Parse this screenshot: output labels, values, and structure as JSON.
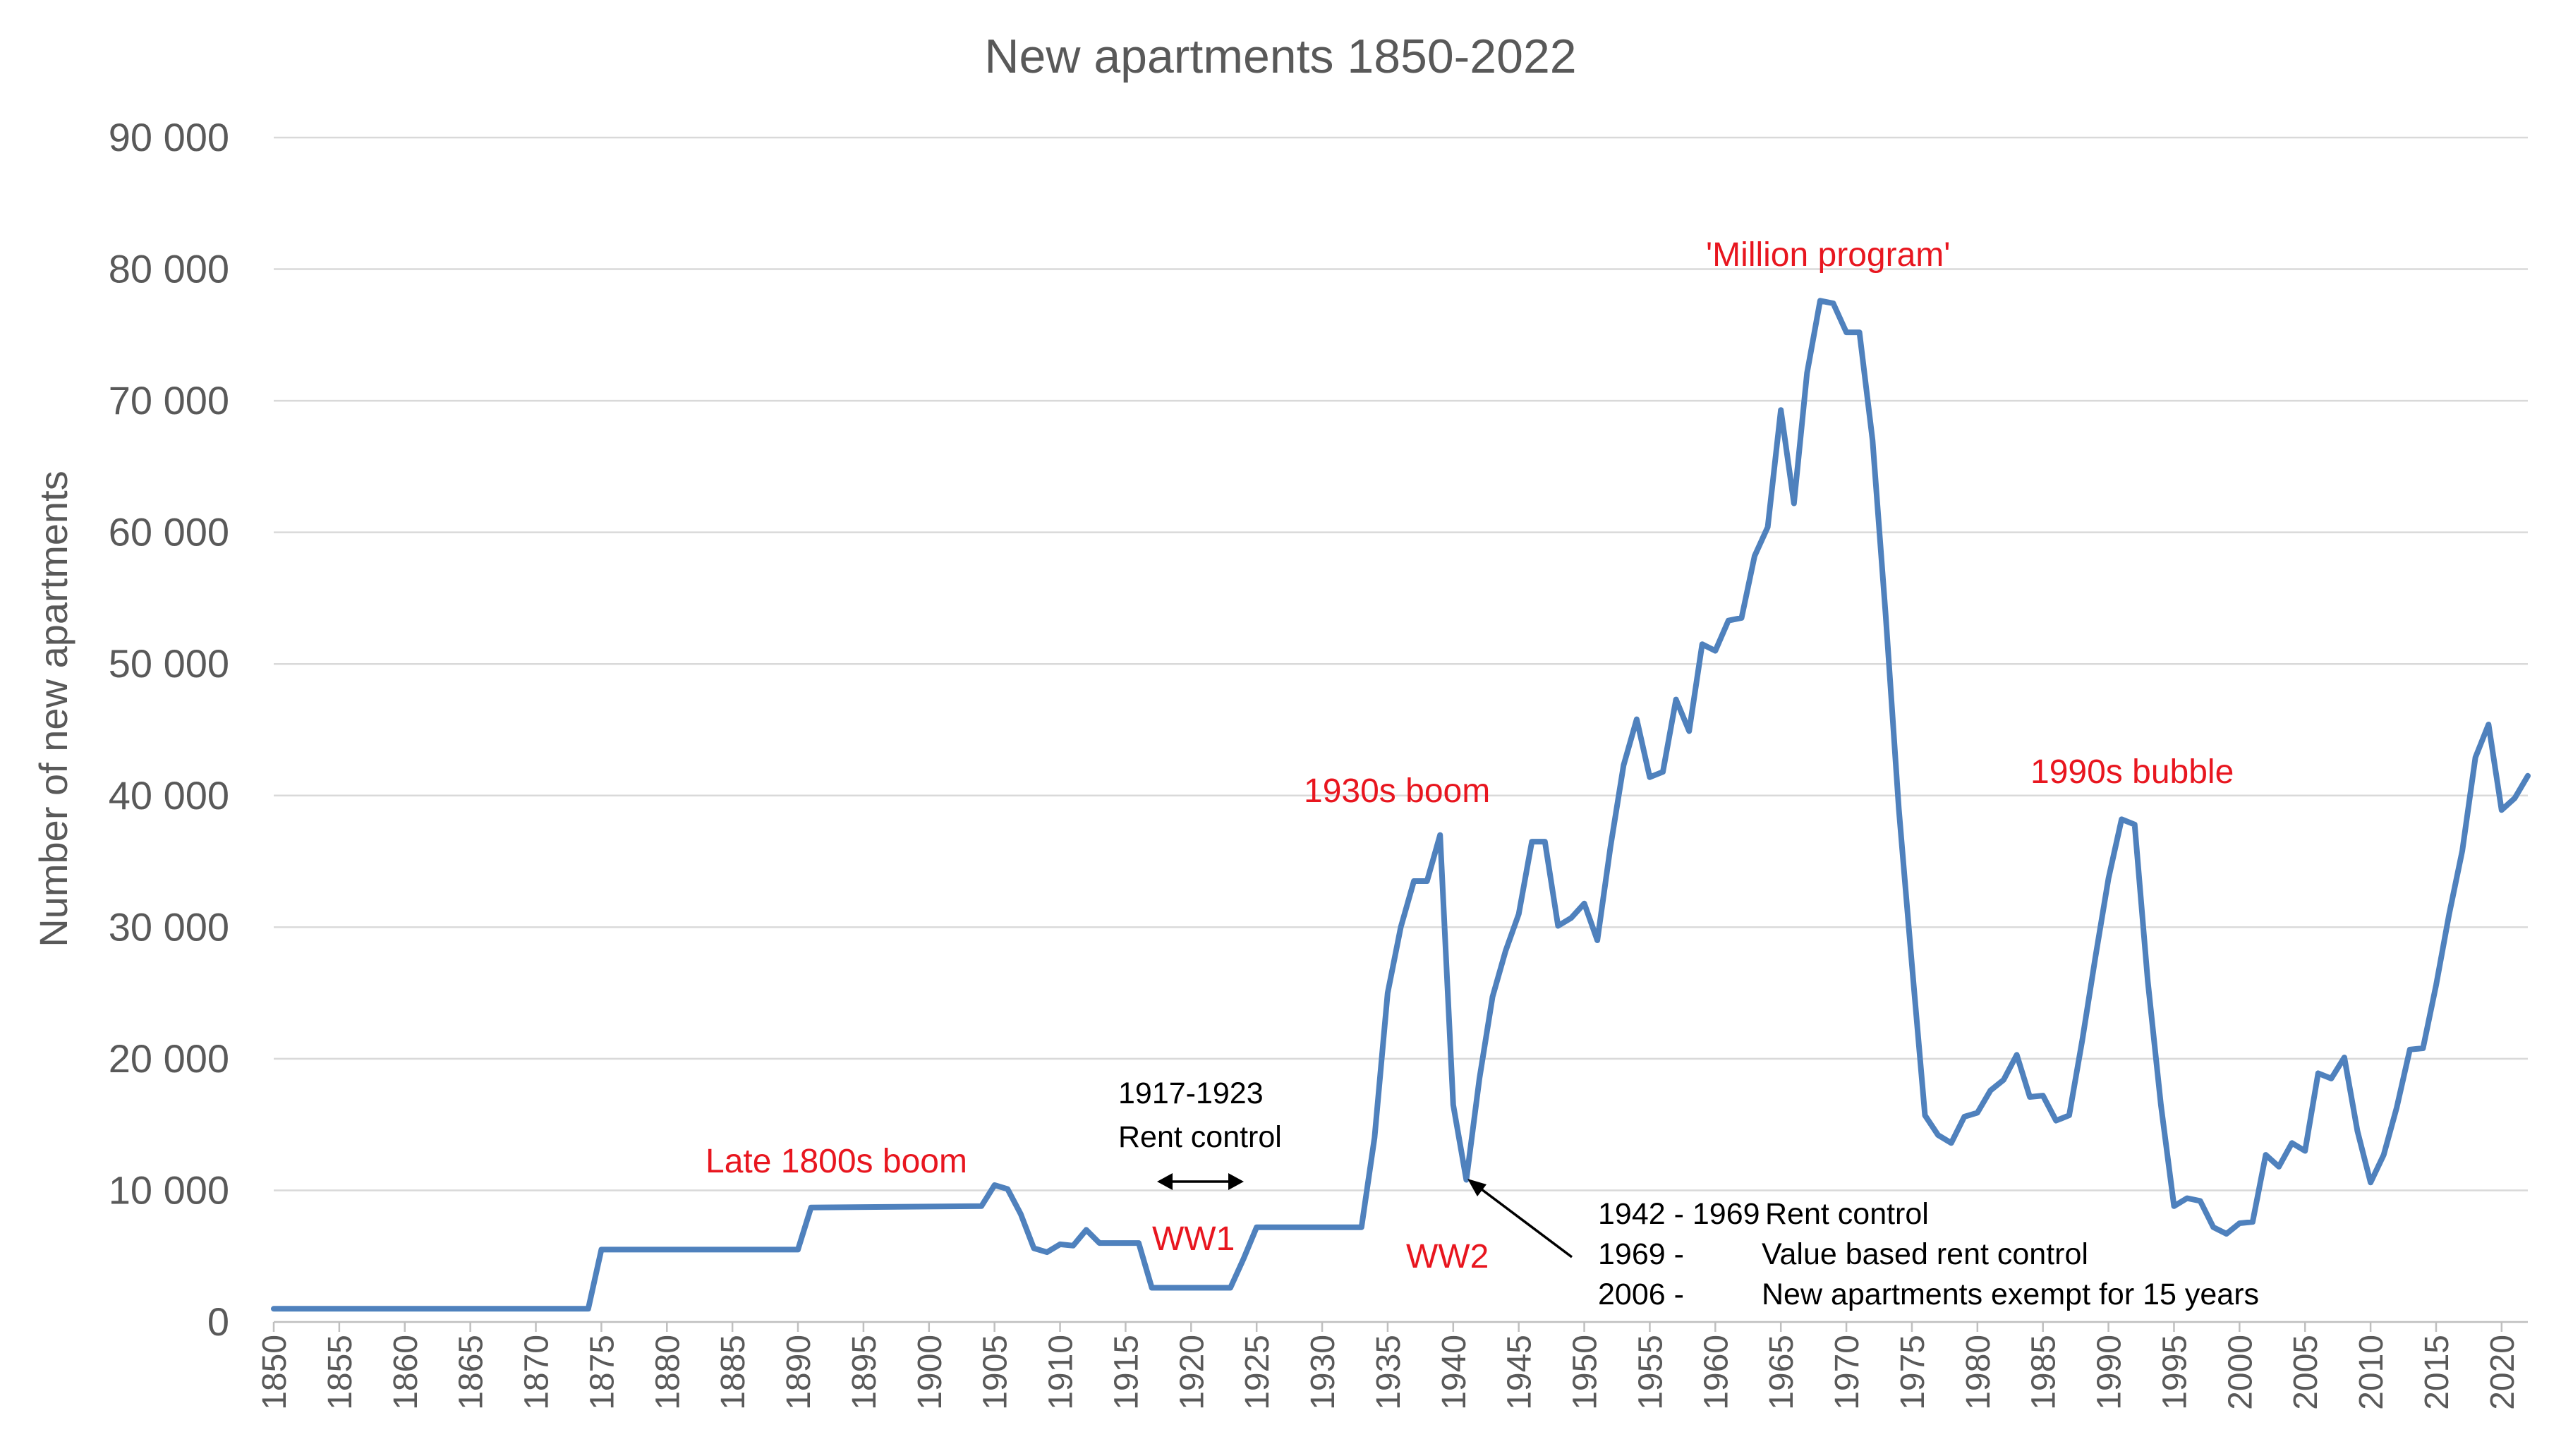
{
  "colors": {
    "series": "#4f81bd",
    "annotation_red": "#e8161f",
    "text_gray": "#595959",
    "grid": "#d9d9d9"
  },
  "chart_data": {
    "type": "line",
    "title": "New apartments 1850-2022",
    "xlabel": "",
    "ylabel": "Number of new apartments",
    "xlim": [
      1850,
      2022
    ],
    "ylim": [
      0,
      90000
    ],
    "yticks": [
      0,
      10000,
      20000,
      30000,
      40000,
      50000,
      60000,
      70000,
      80000,
      90000
    ],
    "ytick_labels": [
      "0",
      "10 000",
      "20 000",
      "30 000",
      "40 000",
      "50 000",
      "60 000",
      "70 000",
      "80 000",
      "90 000"
    ],
    "xtick_labels": [
      "1850",
      "1855",
      "1860",
      "1865",
      "1870",
      "1875",
      "1880",
      "1885",
      "1890",
      "1895",
      "1900",
      "1905",
      "1910",
      "1915",
      "1920",
      "1925",
      "1930",
      "1935",
      "1940",
      "1945",
      "1950",
      "1955",
      "1960",
      "1965",
      "1970",
      "1975",
      "1980",
      "1985",
      "1990",
      "1995",
      "2000",
      "2005",
      "2010",
      "2015",
      "2020"
    ],
    "grid": true,
    "legend": "none",
    "series": [
      {
        "x": [
          1850,
          1874,
          1875,
          1890,
          1891,
          1904,
          1905,
          1906,
          1907,
          1908,
          1909,
          1910,
          1911,
          1912,
          1913,
          1914,
          1915,
          1916,
          1917,
          1918,
          1919,
          1920,
          1921,
          1922,
          1923,
          1924,
          1925,
          1926,
          1927,
          1928,
          1929,
          1930,
          1931,
          1932,
          1933,
          1934,
          1935,
          1936,
          1937,
          1938,
          1939,
          1940,
          1941,
          1942,
          1943,
          1944,
          1945,
          1946,
          1947,
          1948,
          1949,
          1950,
          1951,
          1952,
          1953,
          1954,
          1955,
          1956,
          1957,
          1958,
          1959,
          1960,
          1961,
          1962,
          1963,
          1964,
          1965,
          1966,
          1967,
          1968,
          1969,
          1970,
          1971,
          1972,
          1973,
          1974,
          1975,
          1976,
          1977,
          1978,
          1979,
          1980,
          1981,
          1982,
          1983,
          1984,
          1985,
          1986,
          1987,
          1988,
          1989,
          1990,
          1991,
          1992,
          1993,
          1994,
          1995,
          1996,
          1997,
          1998,
          1999,
          2000,
          2001,
          2002,
          2003,
          2004,
          2005,
          2006,
          2007,
          2008,
          2009,
          2010,
          2011,
          2012,
          2013,
          2014,
          2015,
          2016,
          2017,
          2018,
          2019,
          2020,
          2021,
          2022
        ],
        "y": [
          1000,
          1000,
          5500,
          5500,
          8700,
          8800,
          10400,
          10100,
          8200,
          5600,
          5300,
          5900,
          5800,
          7000,
          6000,
          6000,
          6000,
          6000,
          2600,
          2600,
          2600,
          2600,
          2600,
          2600,
          2600,
          4800,
          7200,
          7200,
          7200,
          7200,
          7200,
          7200,
          7200,
          7200,
          7200,
          14000,
          25000,
          30000,
          33500,
          33500,
          37000,
          16500,
          10800,
          18500,
          24700,
          28200,
          31000,
          36500,
          36500,
          30100,
          30700,
          31800,
          29000,
          36100,
          42300,
          45800,
          41400,
          41800,
          47300,
          44900,
          51500,
          51000,
          53300,
          53500,
          58200,
          60400,
          69300,
          62200,
          72100,
          77600,
          77400,
          75200,
          75200,
          67000,
          53700,
          39000,
          27200,
          15700,
          14200,
          13600,
          15600,
          15900,
          17600,
          18400,
          20300,
          17100,
          17200,
          15300,
          15700,
          21400,
          27700,
          33700,
          38200,
          37800,
          25900,
          16500,
          8800,
          9400,
          9200,
          7200,
          6700,
          7500,
          7600,
          12700,
          11800,
          13600,
          13000,
          18900,
          18500,
          20100,
          14500,
          10600,
          12700,
          16300,
          20700,
          20800,
          25600,
          31000,
          35800,
          42900,
          45400,
          38900,
          39800,
          41500
        ]
      }
    ],
    "annotations": {
      "late_1800s": "Late 1800s boom",
      "ww1": "WW1",
      "rent_control_1917_years": "1917-1923",
      "rent_control_1917_label": "Rent control",
      "boom_1930s": "1930s boom",
      "ww2": "WW2",
      "million_program": "'Million program'",
      "bubble_1990s": "1990s bubble",
      "policy_1942_year": "1942 - 1969",
      "policy_1942_text": "Rent control",
      "policy_1969_year": "1969 -",
      "policy_1969_text": "Value based rent control",
      "policy_2006_year": "2006 -",
      "policy_2006_text": "New apartments exempt for 15 years"
    }
  }
}
